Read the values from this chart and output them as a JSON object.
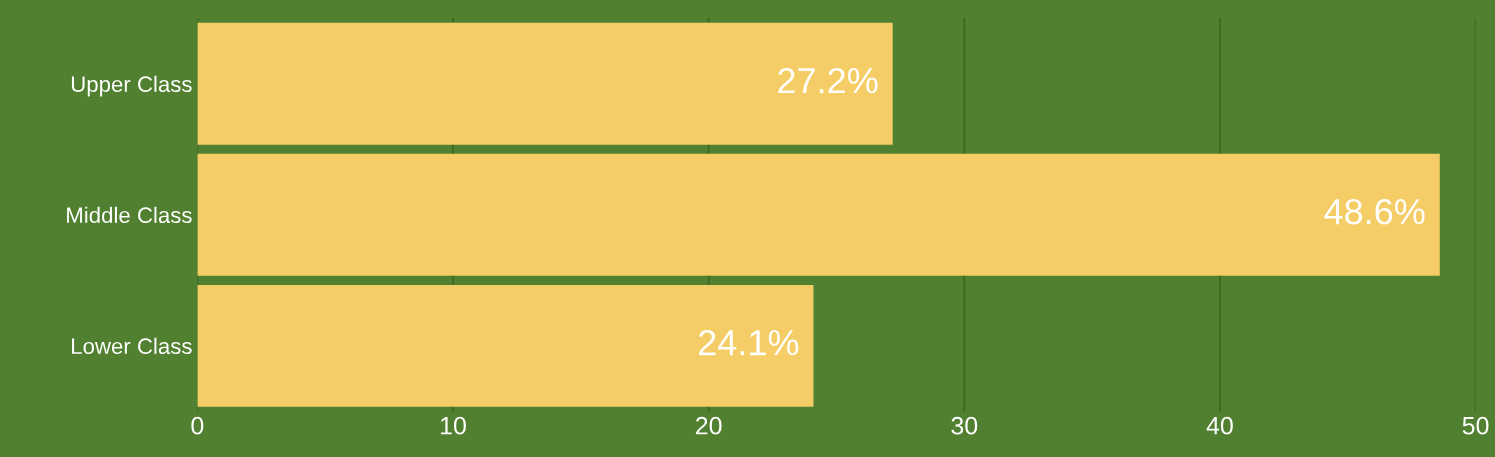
{
  "chart_data": {
    "type": "bar",
    "orientation": "horizontal",
    "categories": [
      "Upper Class",
      "Middle Class",
      "Lower Class"
    ],
    "values": [
      27.2,
      48.6,
      24.1
    ],
    "value_labels": [
      "27.2%",
      "48.6%",
      "24.1%"
    ],
    "color": "#f5cd66",
    "xlim": [
      0,
      50
    ],
    "xticks": [
      0,
      10,
      20,
      30,
      40,
      50
    ],
    "grid": "x"
  }
}
